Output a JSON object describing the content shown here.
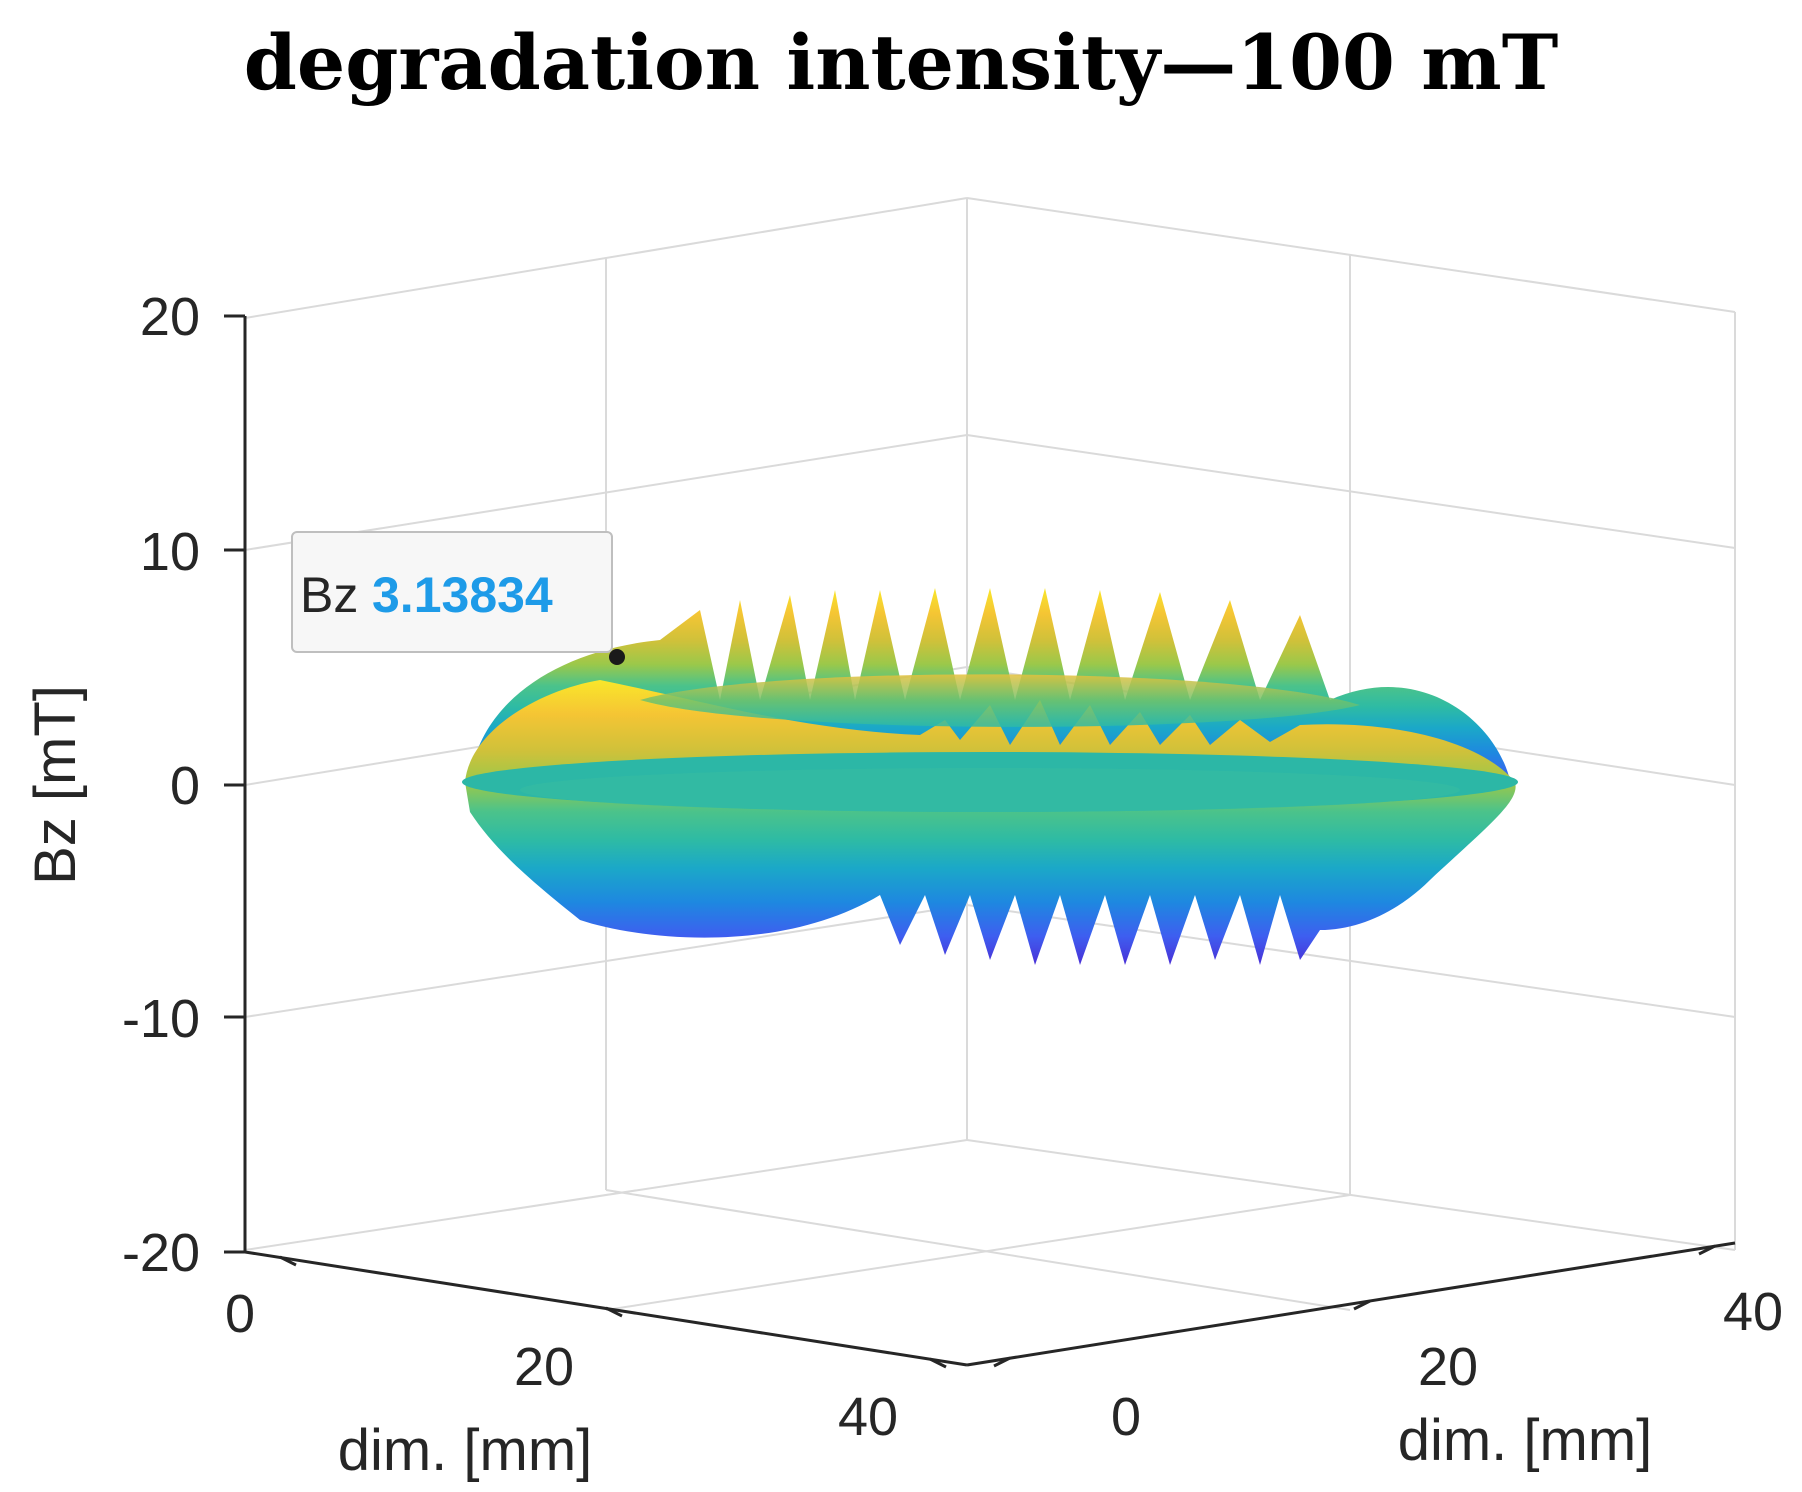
{
  "chart_data": {
    "type": "surface3d",
    "title": "degradation intensity—100 mT",
    "zlabel": "Bz [mT]",
    "xlabel": "dim. [mm]",
    "ylabel": "dim. [mm]",
    "zlim": [
      -20,
      20
    ],
    "xlim": [
      0,
      40
    ],
    "ylim": [
      0,
      40
    ],
    "z_ticks": [
      "20",
      "10",
      "0",
      "-10",
      "-20"
    ],
    "x_ticks": [
      "0",
      "20",
      "40"
    ],
    "y_ticks": [
      "0",
      "20",
      "40"
    ],
    "surface": {
      "shape": "ring",
      "z_max_approx": 8,
      "z_min_approx": -8,
      "z_base": 0,
      "colormap": "parula"
    },
    "datatip": {
      "label": "Bz",
      "value": "3.13834"
    },
    "colors": {
      "datatip_value": "#1E9BE8",
      "grid": "#D9D9D9",
      "axis": "#262626"
    }
  }
}
